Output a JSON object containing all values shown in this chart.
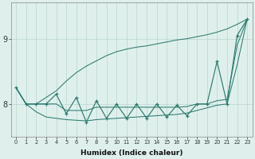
{
  "xlabel": "Humidex (Indice chaleur)",
  "x": [
    0,
    1,
    2,
    3,
    4,
    5,
    6,
    7,
    8,
    9,
    10,
    11,
    12,
    13,
    14,
    15,
    16,
    17,
    18,
    19,
    20,
    21,
    22,
    23
  ],
  "zigzag": [
    8.25,
    8.0,
    8.0,
    8.0,
    8.15,
    7.85,
    8.1,
    7.72,
    8.05,
    7.78,
    8.0,
    7.78,
    8.0,
    7.78,
    8.0,
    7.8,
    7.98,
    7.82,
    8.0,
    8.0,
    8.65,
    8.0,
    9.05,
    9.3
  ],
  "upper_line": [
    8.25,
    8.0,
    8.0,
    8.1,
    8.2,
    8.35,
    8.48,
    8.58,
    8.66,
    8.74,
    8.8,
    8.84,
    8.87,
    8.89,
    8.92,
    8.95,
    8.98,
    9.0,
    9.03,
    9.06,
    9.1,
    9.15,
    9.22,
    9.3
  ],
  "lower_line": [
    8.25,
    8.0,
    7.88,
    7.8,
    7.78,
    7.76,
    7.75,
    7.74,
    7.76,
    7.77,
    7.78,
    7.79,
    7.8,
    7.81,
    7.82,
    7.83,
    7.84,
    7.86,
    7.9,
    7.94,
    7.98,
    8.0,
    8.6,
    9.3
  ],
  "middle_line": [
    8.25,
    8.0,
    8.0,
    8.0,
    8.0,
    7.9,
    7.9,
    7.9,
    7.95,
    7.95,
    7.95,
    7.95,
    7.95,
    7.95,
    7.95,
    7.95,
    7.95,
    7.96,
    8.0,
    8.0,
    8.05,
    8.07,
    8.9,
    9.3
  ],
  "color": "#2d7a6e",
  "bg_color": "#dff0ec",
  "grid_color": "#b8d4ce",
  "ylim": [
    7.5,
    9.55
  ],
  "ytick_vals": [
    8,
    9
  ],
  "xlim": [
    0,
    23
  ]
}
